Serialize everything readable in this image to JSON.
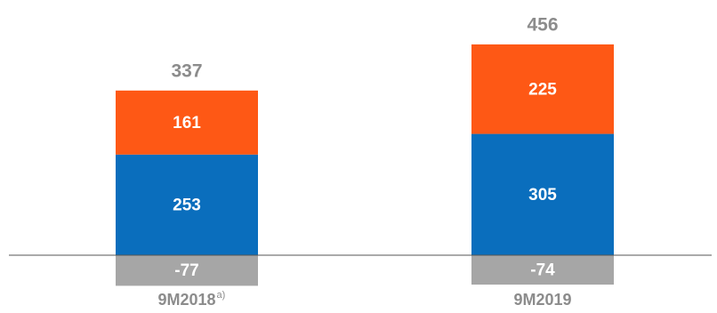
{
  "chart_data": {
    "type": "stacked_bar",
    "categories": [
      "9M2018",
      "9M2019"
    ],
    "category_notes": [
      "a)",
      null
    ],
    "series": [
      {
        "color": "#a6a6a6",
        "values": [
          -77,
          -74
        ]
      },
      {
        "color": "#0a6ebd",
        "values": [
          253,
          305
        ]
      },
      {
        "color": "#fe5815",
        "values": [
          161,
          225
        ]
      }
    ],
    "totals": [
      337,
      456
    ],
    "ylim": [
      -100,
      550
    ]
  }
}
